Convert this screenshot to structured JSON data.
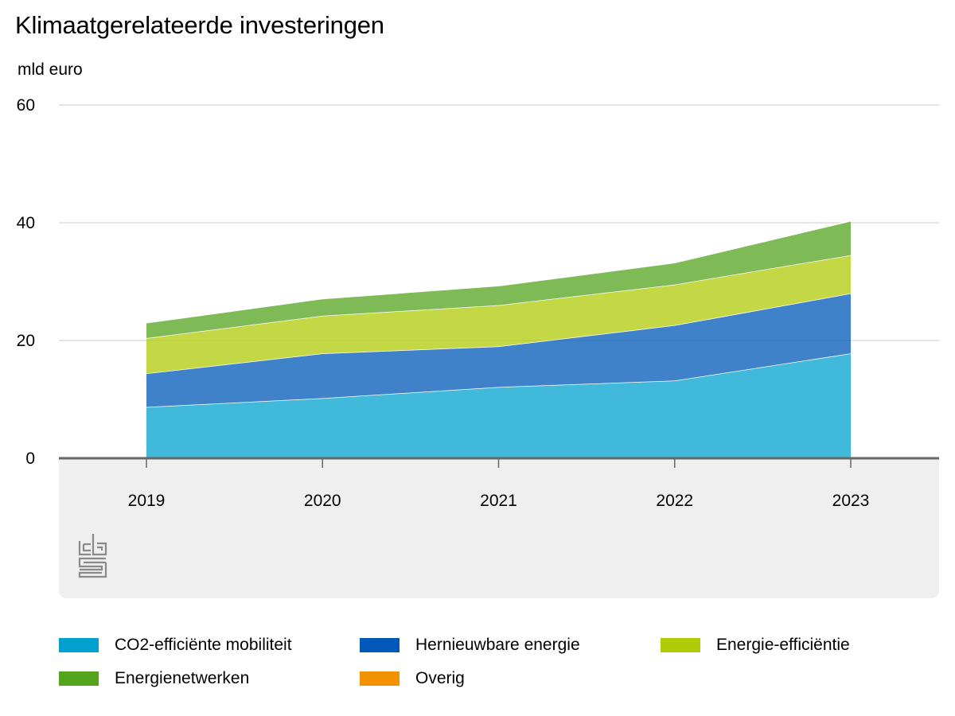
{
  "title": "Klimaatgerelateerde investeringen",
  "unit": "mld euro",
  "chart_data": {
    "type": "area",
    "stacked": true,
    "title": "Klimaatgerelateerde investeringen",
    "ylabel": "mld euro",
    "xlabel": "",
    "ylim": [
      0,
      60
    ],
    "yticks": [
      0,
      20,
      40,
      60
    ],
    "categories": [
      "2019",
      "2020",
      "2021",
      "2022",
      "2023"
    ],
    "series": [
      {
        "name": "CO2-efficiënte mobiliteit",
        "color": "#00a1cd",
        "values": [
          8.7,
          10.2,
          12.1,
          13.2,
          17.8
        ]
      },
      {
        "name": "Hernieuwbare energie",
        "color": "#0058b8",
        "values": [
          5.7,
          7.6,
          6.9,
          9.4,
          10.2
        ]
      },
      {
        "name": "Energie-efficiëntie",
        "color": "#afcb05",
        "values": [
          6.0,
          6.4,
          7.0,
          6.9,
          6.5
        ]
      },
      {
        "name": "Energienetwerken",
        "color": "#53a31d",
        "values": [
          2.6,
          2.9,
          3.3,
          3.7,
          5.8
        ]
      },
      {
        "name": "Overig",
        "color": "#f39200",
        "values": [
          0,
          0,
          0,
          0,
          0
        ]
      }
    ],
    "grid": true,
    "legend_position": "bottom"
  },
  "logo": {
    "name": "cbs-logo",
    "text": "cbs"
  }
}
